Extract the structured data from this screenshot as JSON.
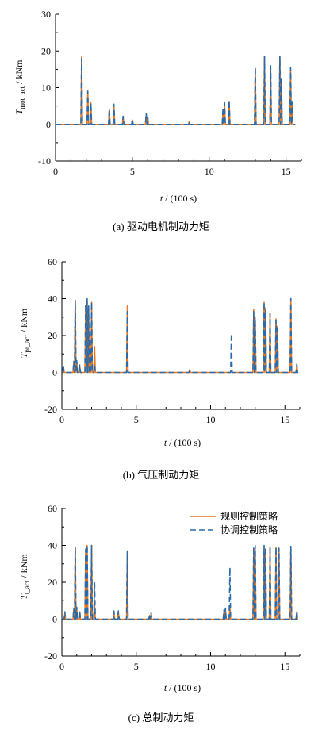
{
  "chart_data": [
    {
      "type": "line",
      "caption": "(a)  驱动电机制动力矩",
      "ylabel_var": "T",
      "ylabel_sub": "mot_act",
      "ylabel_unit": " / kNm",
      "xlabel_var": "t",
      "xlabel_unit": " / (100 s)",
      "xlim": [
        0,
        16
      ],
      "ylim": [
        -10,
        30
      ],
      "xticks": [
        0,
        5,
        10,
        15
      ],
      "yticks": [
        -10,
        0,
        10,
        20,
        30
      ],
      "grid": false,
      "series": [
        {
          "style": "solid",
          "color": "#e87722",
          "spikes": [
            [
              1.7,
              18.5
            ],
            [
              2.1,
              9.2
            ],
            [
              2.3,
              6.0
            ],
            [
              3.5,
              4.0
            ],
            [
              3.8,
              5.2
            ],
            [
              4.4,
              2.0
            ],
            [
              5.0,
              1.2
            ],
            [
              5.9,
              2.6
            ],
            [
              6.0,
              1.8
            ],
            [
              8.7,
              0.8
            ],
            [
              10.9,
              4.0
            ],
            [
              11.0,
              5.5
            ],
            [
              11.3,
              6.3
            ],
            [
              13.0,
              15.0
            ],
            [
              13.6,
              18.5
            ],
            [
              14.0,
              15.5
            ],
            [
              14.6,
              18.5
            ],
            [
              14.7,
              12.0
            ],
            [
              15.3,
              15.0
            ],
            [
              15.4,
              6.0
            ]
          ]
        },
        {
          "style": "dashed",
          "color": "#2a6aa8",
          "spikes": [
            [
              1.7,
              18.0
            ],
            [
              2.1,
              9.0
            ],
            [
              2.3,
              5.8
            ],
            [
              3.5,
              4.2
            ],
            [
              3.8,
              5.5
            ],
            [
              4.4,
              2.2
            ],
            [
              5.0,
              1.3
            ],
            [
              5.9,
              3.0
            ],
            [
              6.0,
              2.0
            ],
            [
              8.7,
              0.8
            ],
            [
              10.9,
              4.5
            ],
            [
              11.0,
              6.0
            ],
            [
              11.3,
              6.5
            ],
            [
              13.0,
              15.5
            ],
            [
              13.6,
              18.5
            ],
            [
              14.0,
              16.0
            ],
            [
              14.6,
              18.5
            ],
            [
              14.7,
              12.5
            ],
            [
              15.3,
              15.5
            ],
            [
              15.4,
              6.2
            ]
          ]
        }
      ]
    },
    {
      "type": "line",
      "caption": "(b)  气压制动力矩",
      "ylabel_var": "T",
      "ylabel_sub": "pr_act",
      "ylabel_unit": " / kNm",
      "xlabel_var": "t",
      "xlabel_unit": " / (100 s)",
      "xlim": [
        0,
        16
      ],
      "ylim": [
        -20,
        60
      ],
      "xticks": [
        0,
        5,
        10,
        15
      ],
      "yticks": [
        -20,
        0,
        20,
        40,
        60
      ],
      "grid": false,
      "series": [
        {
          "style": "solid",
          "color": "#e87722",
          "spikes": [
            [
              0.1,
              3.0
            ],
            [
              0.8,
              5.0
            ],
            [
              0.9,
              39.0
            ],
            [
              1.0,
              6.0
            ],
            [
              1.2,
              3.5
            ],
            [
              1.6,
              36.0
            ],
            [
              1.7,
              39.0
            ],
            [
              1.8,
              35.0
            ],
            [
              2.0,
              38.0
            ],
            [
              2.2,
              14.0
            ],
            [
              4.4,
              36.0
            ],
            [
              8.6,
              1.5
            ],
            [
              11.4,
              1.0
            ],
            [
              12.9,
              34.0
            ],
            [
              13.0,
              30.0
            ],
            [
              13.6,
              38.0
            ],
            [
              13.7,
              35.0
            ],
            [
              14.0,
              32.0
            ],
            [
              14.4,
              29.0
            ],
            [
              14.5,
              25.0
            ],
            [
              15.4,
              40.0
            ],
            [
              15.8,
              4.0
            ]
          ]
        },
        {
          "style": "dashed",
          "color": "#2a6aa8",
          "spikes": [
            [
              0.1,
              4.0
            ],
            [
              0.8,
              6.0
            ],
            [
              0.9,
              39.0
            ],
            [
              1.0,
              6.5
            ],
            [
              1.2,
              4.0
            ],
            [
              1.6,
              37.0
            ],
            [
              1.7,
              40.0
            ],
            [
              1.8,
              36.0
            ],
            [
              2.0,
              38.0
            ],
            [
              2.2,
              4.0
            ],
            [
              4.4,
              33.0
            ],
            [
              8.6,
              1.0
            ],
            [
              11.4,
              21.0
            ],
            [
              12.9,
              33.0
            ],
            [
              13.0,
              29.0
            ],
            [
              13.6,
              38.0
            ],
            [
              13.7,
              34.0
            ],
            [
              14.0,
              32.0
            ],
            [
              14.4,
              28.0
            ],
            [
              14.5,
              24.0
            ],
            [
              15.4,
              40.0
            ],
            [
              15.8,
              4.5
            ]
          ]
        }
      ]
    },
    {
      "type": "line",
      "caption": "(c)  总制动力矩",
      "ylabel_var": "T",
      "ylabel_sub": "t_act",
      "ylabel_unit": " / kNm",
      "xlabel_var": "t",
      "xlabel_unit": " / (100 s)",
      "xlim": [
        0,
        16
      ],
      "ylim": [
        -20,
        60
      ],
      "xticks": [
        0,
        5,
        10,
        15
      ],
      "yticks": [
        -20,
        0,
        20,
        40,
        60
      ],
      "grid": false,
      "legend_position": "top-right",
      "series": [
        {
          "name": "规则控制策略",
          "style": "solid",
          "color": "#e87722",
          "spikes": [
            [
              0.2,
              3.0
            ],
            [
              0.8,
              5.0
            ],
            [
              0.9,
              39.0
            ],
            [
              1.0,
              6.0
            ],
            [
              1.2,
              4.0
            ],
            [
              1.6,
              37.0
            ],
            [
              1.7,
              40.0
            ],
            [
              2.0,
              40.0
            ],
            [
              2.2,
              8.0
            ],
            [
              3.5,
              4.0
            ],
            [
              3.8,
              4.0
            ],
            [
              4.4,
              36.0
            ],
            [
              5.9,
              2.0
            ],
            [
              6.0,
              3.0
            ],
            [
              10.9,
              4.0
            ],
            [
              11.0,
              5.5
            ],
            [
              11.3,
              6.0
            ],
            [
              12.9,
              38.0
            ],
            [
              13.0,
              39.0
            ],
            [
              13.6,
              39.0
            ],
            [
              13.7,
              38.0
            ],
            [
              14.0,
              39.0
            ],
            [
              14.4,
              39.0
            ],
            [
              14.6,
              38.0
            ],
            [
              15.4,
              39.0
            ],
            [
              15.8,
              4.0
            ]
          ]
        },
        {
          "name": "协调控制策略",
          "style": "dashed",
          "color": "#2a6aa8",
          "spikes": [
            [
              0.2,
              4.0
            ],
            [
              0.8,
              6.0
            ],
            [
              0.9,
              39.5
            ],
            [
              1.0,
              6.5
            ],
            [
              1.2,
              4.5
            ],
            [
              1.6,
              38.0
            ],
            [
              1.7,
              40.0
            ],
            [
              2.0,
              40.0
            ],
            [
              2.2,
              20.0
            ],
            [
              3.5,
              4.5
            ],
            [
              3.8,
              4.5
            ],
            [
              4.4,
              37.0
            ],
            [
              5.9,
              2.5
            ],
            [
              6.0,
              3.5
            ],
            [
              10.9,
              5.0
            ],
            [
              11.0,
              6.0
            ],
            [
              11.3,
              28.0
            ],
            [
              12.9,
              39.0
            ],
            [
              13.0,
              40.0
            ],
            [
              13.6,
              40.0
            ],
            [
              13.7,
              39.0
            ],
            [
              14.0,
              39.5
            ],
            [
              14.4,
              39.0
            ],
            [
              14.6,
              38.5
            ],
            [
              15.4,
              39.5
            ],
            [
              15.8,
              4.5
            ]
          ]
        }
      ]
    }
  ]
}
